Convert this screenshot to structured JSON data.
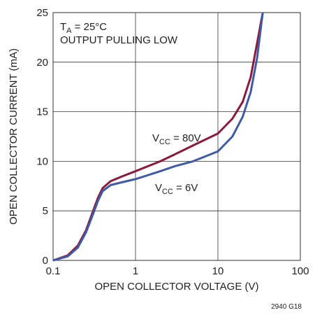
{
  "chart_data": {
    "type": "line",
    "x_label": "OPEN COLLECTOR VOLTAGE (V)",
    "y_label": "OPEN COLLECTOR CURRENT (mA)",
    "x": [
      0.1,
      0.15,
      0.2,
      0.25,
      0.3,
      0.35,
      0.4,
      0.5,
      0.7,
      1,
      2,
      3,
      5,
      10,
      15,
      20,
      25,
      30,
      35
    ],
    "series": [
      {
        "name": "VCC = 80V",
        "color": "#8b1a3c",
        "values": [
          0,
          0.5,
          1.5,
          3,
          4.8,
          6.3,
          7.3,
          8,
          8.5,
          9,
          10,
          10.7,
          11.6,
          12.8,
          14.3,
          16,
          18.5,
          22,
          25
        ]
      },
      {
        "name": "VCC = 6V",
        "color": "#3f5aa6",
        "values": [
          0,
          0.4,
          1.3,
          2.8,
          4.5,
          6,
          7,
          7.6,
          7.9,
          8.2,
          9,
          9.5,
          10,
          11,
          12.5,
          14.5,
          17,
          20.5,
          25
        ]
      }
    ],
    "annotations": [
      {
        "text": "T",
        "sub": "A",
        "suffix": " = 25°C"
      },
      {
        "text": "OUTPUT PULLING LOW"
      },
      {
        "text": "V",
        "sub": "CC",
        "suffix": " = 80V"
      },
      {
        "text": "V",
        "sub": "CC",
        "suffix": " = 6V"
      }
    ],
    "footnote": "2940 G18",
    "x_log": true,
    "xlim": [
      0.1,
      100
    ],
    "xticks": [
      0.1,
      1,
      10,
      100
    ],
    "ylim": [
      0,
      25
    ],
    "yticks": [
      0,
      5,
      10,
      15,
      20,
      25
    ],
    "grid": true
  }
}
